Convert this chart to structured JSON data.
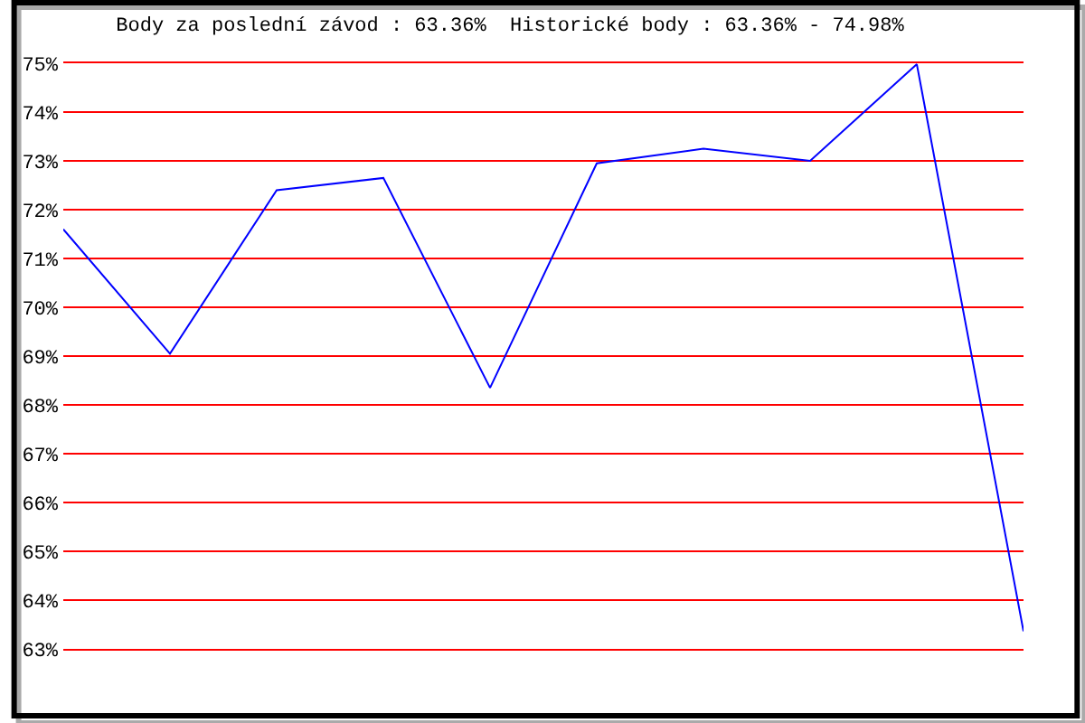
{
  "chart_data": {
    "type": "line",
    "title": "Body za poslední závod : 63.36%  Historické body : 63.36% - 74.98%",
    "categories": [
      null,
      null,
      null,
      null,
      null,
      null,
      null,
      null,
      null,
      null
    ],
    "values": [
      71.6,
      69.05,
      72.4,
      72.65,
      68.35,
      72.95,
      73.25,
      73.0,
      74.98,
      63.36
    ],
    "color": "#0000ff",
    "ylim": [
      63,
      75
    ],
    "yticks": [
      {
        "value": 63,
        "label": "63%"
      },
      {
        "value": 64,
        "label": "64%"
      },
      {
        "value": 65,
        "label": "65%"
      },
      {
        "value": 66,
        "label": "66%"
      },
      {
        "value": 67,
        "label": "67%"
      },
      {
        "value": 68,
        "label": "68%"
      },
      {
        "value": 69,
        "label": "69%"
      },
      {
        "value": 70,
        "label": "70%"
      },
      {
        "value": 71,
        "label": "71%"
      },
      {
        "value": 72,
        "label": "72%"
      },
      {
        "value": 73,
        "label": "73%"
      },
      {
        "value": 74,
        "label": "74%"
      },
      {
        "value": 75,
        "label": "75%"
      }
    ],
    "grid": "y",
    "tick_labels": "y",
    "line_style": "solid"
  }
}
